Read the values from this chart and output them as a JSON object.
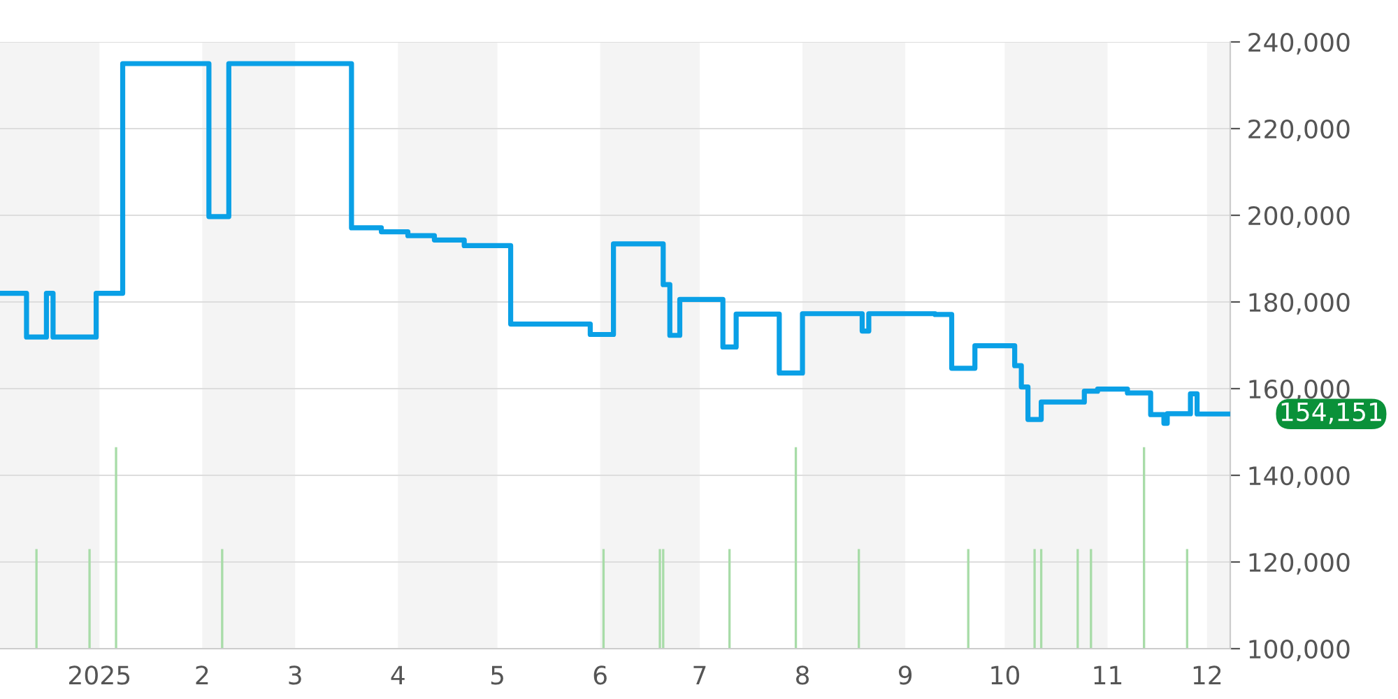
{
  "chart_data": {
    "type": "step",
    "xlim": [
      "2024-12-02",
      "2025-12-08"
    ],
    "ylim": [
      100000,
      240000
    ],
    "xticks": [
      {
        "value": "2025-01-01",
        "label": "2025"
      },
      {
        "value": "2025-02-01",
        "label": "2"
      },
      {
        "value": "2025-03-01",
        "label": "3"
      },
      {
        "value": "2025-04-01",
        "label": "4"
      },
      {
        "value": "2025-05-01",
        "label": "5"
      },
      {
        "value": "2025-06-01",
        "label": "6"
      },
      {
        "value": "2025-07-01",
        "label": "7"
      },
      {
        "value": "2025-08-01",
        "label": "8"
      },
      {
        "value": "2025-09-01",
        "label": "9"
      },
      {
        "value": "2025-10-01",
        "label": "10"
      },
      {
        "value": "2025-11-01",
        "label": "11"
      },
      {
        "value": "2025-12-01",
        "label": "12"
      }
    ],
    "yticks": [
      {
        "value": 100000,
        "label": "100,000"
      },
      {
        "value": 120000,
        "label": "120,000"
      },
      {
        "value": 140000,
        "label": "140,000"
      },
      {
        "value": 160000,
        "label": "160,000"
      },
      {
        "value": 180000,
        "label": "180,000"
      },
      {
        "value": 200000,
        "label": "200,000"
      },
      {
        "value": 220000,
        "label": "220,000"
      },
      {
        "value": 240000,
        "label": "240,000"
      }
    ],
    "grid": "y",
    "legend": false,
    "bands": [
      {
        "axis": "x",
        "from": "2024-12-02",
        "to": "2025-01-01",
        "color": "#f4f4f4"
      },
      {
        "axis": "x",
        "from": "2025-02-01",
        "to": "2025-03-01",
        "color": "#f4f4f4"
      },
      {
        "axis": "x",
        "from": "2025-04-01",
        "to": "2025-05-01",
        "color": "#f4f4f4"
      },
      {
        "axis": "x",
        "from": "2025-06-01",
        "to": "2025-07-01",
        "color": "#f4f4f4"
      },
      {
        "axis": "x",
        "from": "2025-08-01",
        "to": "2025-09-01",
        "color": "#f4f4f4"
      },
      {
        "axis": "x",
        "from": "2025-10-01",
        "to": "2025-11-01",
        "color": "#f4f4f4"
      },
      {
        "axis": "x",
        "from": "2025-12-01",
        "to": "2025-12-08",
        "color": "#f4f4f4"
      }
    ],
    "annotations": [
      {
        "text": "154,151",
        "x": "2025-12-08",
        "y": 154151
      }
    ],
    "series": [
      {
        "type": "bar",
        "color": "#a8dca8",
        "x": [
          "2024-12-13",
          "2024-12-29",
          "2025-01-06",
          "2025-02-07",
          "2025-06-02",
          "2025-06-19",
          "2025-06-20",
          "2025-07-10",
          "2025-07-30",
          "2025-08-18",
          "2025-09-20",
          "2025-10-10",
          "2025-10-12",
          "2025-10-23",
          "2025-10-27",
          "2025-11-12",
          "2025-11-25"
        ],
        "values": [
          123000,
          123000,
          146500,
          123000,
          123000,
          123000,
          123000,
          123000,
          146500,
          123000,
          123000,
          123000,
          123000,
          123000,
          123000,
          146500,
          123000
        ]
      },
      {
        "color": "#0aa0e6",
        "x": [
          "2024-12-02",
          "2024-12-10",
          "2024-12-16",
          "2024-12-18",
          "2024-12-31",
          "2025-01-08",
          "2025-02-03",
          "2025-02-09",
          "2025-03-18",
          "2025-03-27",
          "2025-04-04",
          "2025-04-12",
          "2025-04-21",
          "2025-05-05",
          "2025-05-29",
          "2025-06-05",
          "2025-06-20",
          "2025-06-22",
          "2025-06-25",
          "2025-07-08",
          "2025-07-12",
          "2025-07-25",
          "2025-08-01",
          "2025-08-19",
          "2025-08-21",
          "2025-09-10",
          "2025-09-15",
          "2025-09-22",
          "2025-10-04",
          "2025-10-06",
          "2025-10-08",
          "2025-10-12",
          "2025-10-25",
          "2025-10-29",
          "2025-11-07",
          "2025-11-14",
          "2025-11-18",
          "2025-11-19",
          "2025-11-26",
          "2025-11-28",
          "2025-12-08"
        ],
        "values": [
          182000,
          171900,
          182000,
          171900,
          182000,
          235000,
          199700,
          235000,
          197100,
          196200,
          195300,
          194300,
          193000,
          174900,
          172500,
          193400,
          184000,
          172300,
          180600,
          169600,
          177200,
          163600,
          177300,
          173300,
          177300,
          177100,
          164700,
          169900,
          165300,
          160400,
          152900,
          156900,
          159400,
          159900,
          159000,
          154000,
          152000,
          154200,
          158800,
          154151,
          154151
        ]
      }
    ]
  }
}
